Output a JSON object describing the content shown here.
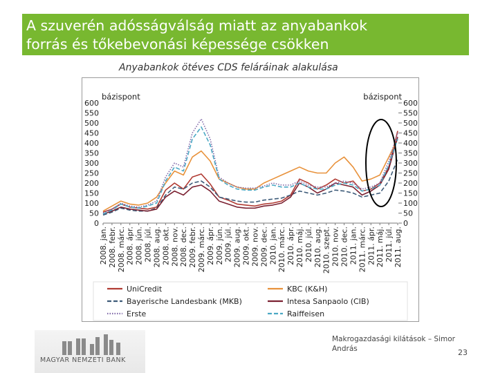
{
  "slide": {
    "title_line1": "A szuverén adósságválság  miatt az anyabankok",
    "title_line2": "forrás és tőkebevonási képessége csökken",
    "subtitle": "Anyabankok ötéves CDS feláráinak alakulása",
    "footer_line1": "Makrogazdasági kilátások – Simor",
    "footer_line2": "András",
    "page_number": "23",
    "logo_text": "MAGYAR NEMZETI BANK",
    "accent_color": "#78b830"
  },
  "chart_data": {
    "type": "line",
    "ylabel_left": "bázispont",
    "ylabel_right": "bázispont",
    "ylim": [
      0,
      600
    ],
    "yticks": [
      0,
      50,
      100,
      150,
      200,
      250,
      300,
      350,
      400,
      450,
      500,
      550,
      600
    ],
    "x": [
      "2008. jan.",
      "2008. febr.",
      "2008. márc.",
      "2008. ápr.",
      "2008. jún.",
      "2008. júl.",
      "2008. aug.",
      "2008. okt.",
      "2008. nov.",
      "2008. dec.",
      "2009. febr.",
      "2009. márc.",
      "2009. ápr.",
      "2009. jún.",
      "2009. júl.",
      "2009. aug.",
      "2009. okt.",
      "2009. nov.",
      "2009. dec.",
      "2010. jan.",
      "2010. márc.",
      "2010. ápr.",
      "2010. máj.",
      "2010. júl.",
      "2010. aug.",
      "2010. szept.",
      "2010. nov.",
      "2010. dec.",
      "2011. jan.",
      "2011. márc.",
      "2011. ápr.",
      "2011. máj.",
      "2011. júl.",
      "2011. aug."
    ],
    "series": [
      {
        "name": "UniCredit",
        "color": "#b03a32",
        "dash": "solid",
        "values": [
          55,
          70,
          95,
          80,
          75,
          70,
          80,
          165,
          200,
          170,
          230,
          245,
          195,
          130,
          115,
          95,
          90,
          85,
          95,
          100,
          110,
          140,
          220,
          200,
          170,
          190,
          220,
          200,
          210,
          160,
          170,
          200,
          280,
          460
        ]
      },
      {
        "name": "KBC (K&H)",
        "color": "#e8913a",
        "dash": "solid",
        "values": [
          60,
          85,
          110,
          95,
          90,
          100,
          130,
          200,
          260,
          240,
          330,
          360,
          310,
          220,
          200,
          180,
          170,
          170,
          200,
          220,
          240,
          260,
          280,
          260,
          250,
          250,
          300,
          330,
          280,
          210,
          220,
          240,
          330,
          420
        ]
      },
      {
        "name": "Bayerische Landesbank (MKB)",
        "color": "#3c5a78",
        "dash": "dashed",
        "values": [
          40,
          55,
          75,
          65,
          60,
          60,
          75,
          140,
          180,
          170,
          200,
          210,
          180,
          130,
          120,
          110,
          105,
          105,
          115,
          120,
          125,
          140,
          160,
          150,
          140,
          150,
          165,
          160,
          150,
          130,
          140,
          150,
          210,
          320
        ]
      },
      {
        "name": "Intesa Sanpaolo (CIB)",
        "color": "#7a2030",
        "dash": "solid",
        "values": [
          45,
          60,
          80,
          70,
          65,
          60,
          70,
          130,
          160,
          140,
          180,
          190,
          160,
          110,
          95,
          80,
          75,
          75,
          85,
          90,
          100,
          130,
          200,
          180,
          150,
          170,
          200,
          190,
          180,
          140,
          160,
          190,
          270,
          430
        ]
      },
      {
        "name": "Erste",
        "color": "#8068a8",
        "dash": "dotted",
        "values": [
          50,
          70,
          100,
          85,
          80,
          90,
          110,
          230,
          300,
          280,
          450,
          520,
          420,
          230,
          200,
          180,
          175,
          175,
          185,
          200,
          190,
          190,
          210,
          190,
          180,
          180,
          200,
          210,
          200,
          170,
          180,
          200,
          310,
          450
        ]
      },
      {
        "name": "Raiffeisen",
        "color": "#4aa8c4",
        "dash": "dashed",
        "values": [
          45,
          65,
          95,
          80,
          75,
          85,
          100,
          210,
          280,
          260,
          420,
          480,
          390,
          220,
          190,
          170,
          165,
          165,
          180,
          190,
          180,
          180,
          200,
          180,
          170,
          170,
          190,
          200,
          190,
          160,
          170,
          190,
          290,
          420
        ]
      }
    ],
    "legend": "bottom",
    "grid": false,
    "annotation": "ellipse-highlight-2011"
  }
}
